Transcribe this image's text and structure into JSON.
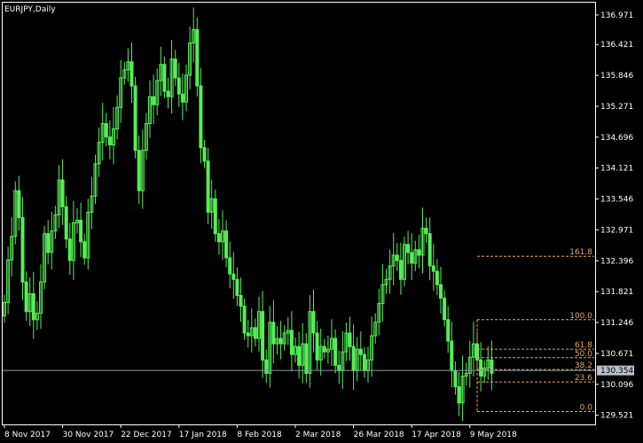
{
  "colors": {
    "background": "#000000",
    "frame": "#ffffff",
    "candle": "#55ee55",
    "fibonacci": "#e8a45c",
    "current_price_line": "#8c9aa6",
    "price_tag_bg": "#b7c2cc",
    "price_tag_text": "#000000"
  },
  "chart_data": {
    "type": "candlestick",
    "title": "EURJPY,Daily",
    "symbol": "EURJPY",
    "timeframe": "Daily",
    "ylim": [
      129.35,
      137.2
    ],
    "y_ticks": [
      "136.971",
      "136.421",
      "135.846",
      "135.271",
      "134.696",
      "134.121",
      "133.546",
      "132.971",
      "132.396",
      "131.821",
      "131.246",
      "130.671",
      "130.096",
      "129.521"
    ],
    "x_ticks": [
      "8 Nov 2017",
      "30 Nov 2017",
      "22 Dec 2017",
      "17 Jan 2018",
      "8 Feb 2018",
      "2 Mar 2018",
      "26 Mar 2018",
      "17 Apr 2018",
      "9 May 2018"
    ],
    "x_tick_index": [
      0,
      16,
      32,
      48,
      64,
      80,
      96,
      112,
      128
    ],
    "current_price": "130.354",
    "fibonacci": {
      "start_index": 130,
      "levels": [
        {
          "label": "161.8",
          "price": 132.48
        },
        {
          "label": "100.0",
          "price": 131.3
        },
        {
          "label": "61.8",
          "price": 130.75
        },
        {
          "label": "50.0",
          "price": 130.59
        },
        {
          "label": "38.2",
          "price": 130.37
        },
        {
          "label": "23.6",
          "price": 130.14
        },
        {
          "label": "0.0",
          "price": 129.59
        }
      ]
    },
    "close": [
      131.62,
      132.41,
      132.85,
      133.7,
      133.2,
      132.0,
      131.45,
      131.78,
      131.3,
      131.42,
      132.0,
      132.9,
      132.55,
      132.95,
      133.25,
      133.9,
      133.4,
      132.8,
      132.4,
      133.1,
      133.15,
      132.75,
      132.45,
      133.3,
      133.6,
      134.2,
      134.6,
      134.95,
      134.7,
      134.55,
      134.85,
      135.25,
      135.8,
      135.95,
      136.1,
      135.65,
      134.45,
      133.7,
      134.45,
      134.95,
      135.45,
      135.3,
      135.75,
      136.05,
      135.55,
      135.45,
      136.15,
      135.8,
      135.5,
      135.35,
      135.85,
      136.45,
      136.7,
      135.65,
      134.5,
      134.25,
      133.3,
      133.55,
      132.9,
      132.75,
      132.95,
      132.45,
      132.15,
      132.05,
      131.75,
      131.55,
      131.05,
      131.0,
      131.15,
      130.95,
      131.45,
      130.55,
      130.3,
      131.25,
      130.85,
      130.95,
      130.85,
      131.05,
      131.1,
      130.65,
      130.8,
      130.45,
      130.85,
      130.3,
      131.45,
      131.05,
      130.55,
      130.8,
      130.7,
      130.75,
      130.95,
      130.45,
      130.35,
      130.7,
      131.05,
      130.8,
      130.35,
      130.75,
      130.65,
      130.35,
      130.55,
      131.0,
      131.25,
      131.6,
      131.95,
      132.05,
      132.3,
      132.5,
      132.4,
      132.05,
      132.7,
      132.55,
      132.35,
      132.6,
      132.5,
      133.0,
      132.9,
      132.3,
      132.2,
      131.95,
      131.7,
      131.3,
      130.9,
      130.35,
      130.05,
      129.75,
      130.25,
      130.3,
      130.6,
      130.85,
      130.55,
      130.25,
      130.4,
      130.55,
      130.3
    ]
  }
}
